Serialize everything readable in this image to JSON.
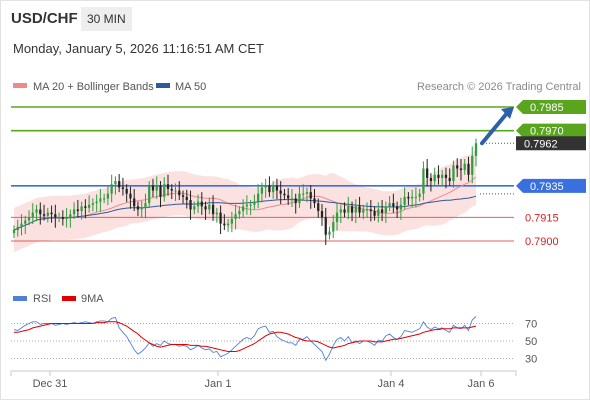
{
  "header": {
    "symbol": "USD/CHF",
    "timeframe": "30 MIN",
    "datetime": "Monday, January 5, 2026 11:16:51 AM CET"
  },
  "legend": {
    "bb_label": "MA 20 + Bollinger Bands",
    "ma50_label": "MA 50",
    "credit": "Research © 2026 Trading Central",
    "colors": {
      "bb": "#f08a8a",
      "ma50": "#2d5a9c"
    }
  },
  "rsi_legend": {
    "rsi_label": "RSI",
    "ma_label": "9MA",
    "colors": {
      "rsi": "#4f7fd9",
      "ma": "#e00000"
    }
  },
  "chart_data": [
    {
      "type": "candlestick",
      "title": "",
      "y_range": [
        0.786,
        0.7995
      ],
      "x_tick_labels": [
        "Dec 31",
        "Jan 1",
        "Jan 4",
        "Jan 6"
      ],
      "levels": [
        {
          "value": 0.7985,
          "label": "0.7985",
          "kind": "resistance",
          "color": "#5aa51e"
        },
        {
          "value": 0.797,
          "label": "0.7970",
          "kind": "resistance",
          "color": "#5aa51e"
        },
        {
          "value": 0.7962,
          "label": "0.7962",
          "kind": "last",
          "color": "#333333"
        },
        {
          "value": 0.7935,
          "label": "0.7935",
          "kind": "pivot",
          "color": "#3a6fe0"
        },
        {
          "value": 0.7915,
          "label": "0.7915",
          "kind": "support",
          "color": "#e06060"
        },
        {
          "value": 0.79,
          "label": "0.7900",
          "kind": "support",
          "color": "#e06060"
        }
      ],
      "arrow": {
        "direction": "up",
        "from": 0.7962,
        "to": 0.7985,
        "color": "#2e5fa8"
      },
      "close": [
        0.7907,
        0.7909,
        0.7911,
        0.7913,
        0.7915,
        0.7918,
        0.792,
        0.7917,
        0.7916,
        0.7918,
        0.7917,
        0.7915,
        0.7915,
        0.7914,
        0.7915,
        0.7917,
        0.792,
        0.7919,
        0.7922,
        0.7921,
        0.7923,
        0.7924,
        0.7925,
        0.7927,
        0.7927,
        0.793,
        0.7936,
        0.7938,
        0.7934,
        0.7933,
        0.793,
        0.7927,
        0.7922,
        0.792,
        0.7921,
        0.7924,
        0.7935,
        0.7932,
        0.7935,
        0.7928,
        0.7936,
        0.7933,
        0.7932,
        0.7932,
        0.7929,
        0.7928,
        0.7926,
        0.792,
        0.7922,
        0.7925,
        0.7922,
        0.792,
        0.7923,
        0.7917,
        0.7918,
        0.7911,
        0.791,
        0.7911,
        0.7914,
        0.7917,
        0.7919,
        0.7922,
        0.7923,
        0.7923,
        0.7925,
        0.793,
        0.7934,
        0.7935,
        0.7931,
        0.7935,
        0.7932,
        0.793,
        0.7929,
        0.7927,
        0.7927,
        0.7924,
        0.793,
        0.793,
        0.7931,
        0.7927,
        0.7924,
        0.7919,
        0.7915,
        0.7904,
        0.7906,
        0.7912,
        0.7918,
        0.792,
        0.7918,
        0.7922,
        0.7918,
        0.7922,
        0.7918,
        0.792,
        0.792,
        0.7919,
        0.7916,
        0.792,
        0.7918,
        0.7922,
        0.7924,
        0.7922,
        0.792,
        0.7923,
        0.7928,
        0.7927,
        0.7928,
        0.7928,
        0.793,
        0.7946,
        0.794,
        0.7938,
        0.7942,
        0.794,
        0.7942,
        0.794,
        0.7938,
        0.7948,
        0.7946,
        0.7945,
        0.7949,
        0.7942,
        0.7954,
        0.7962
      ],
      "rsi": {
        "ylim": [
          20,
          80
        ],
        "ticks": [
          70,
          50,
          30
        ],
        "rsi": [
          63,
          62,
          65,
          68,
          70,
          72,
          72,
          69,
          70,
          70,
          70,
          68,
          69,
          70,
          69,
          70,
          71,
          70,
          71,
          72,
          71,
          70,
          72,
          73,
          73,
          72,
          76,
          77,
          65,
          60,
          55,
          48,
          40,
          35,
          38,
          42,
          48,
          44,
          47,
          45,
          50,
          47,
          46,
          46,
          44,
          45,
          44,
          40,
          42,
          45,
          42,
          40,
          41,
          37,
          38,
          32,
          34,
          36,
          40,
          44,
          48,
          52,
          54,
          52,
          56,
          64,
          66,
          67,
          60,
          61,
          55,
          52,
          50,
          48,
          48,
          45,
          52,
          52,
          55,
          50,
          46,
          42,
          38,
          28,
          35,
          45,
          52,
          54,
          50,
          55,
          48,
          50,
          47,
          50,
          50,
          48,
          45,
          51,
          50,
          56,
          58,
          54,
          52,
          55,
          62,
          61,
          60,
          62,
          64,
          72,
          66,
          63,
          66,
          64,
          65,
          62,
          60,
          68,
          65,
          64,
          68,
          62,
          74,
          78
        ],
        "ma": [
          60,
          60,
          61,
          62,
          63,
          65,
          66,
          67,
          68,
          69,
          70,
          70,
          70,
          70,
          70,
          70,
          70,
          70,
          70,
          70,
          70,
          70,
          71,
          71,
          71,
          72,
          72,
          72,
          71,
          69,
          67,
          64,
          61,
          58,
          54,
          51,
          48,
          46,
          44,
          43,
          44,
          45,
          46,
          46,
          46,
          46,
          46,
          45,
          45,
          45,
          44,
          44,
          43,
          42,
          41,
          40,
          39,
          38,
          38,
          38,
          39,
          41,
          43,
          45,
          47,
          50,
          53,
          56,
          58,
          59,
          60,
          60,
          59,
          58,
          56,
          54,
          53,
          51,
          50,
          50,
          50,
          49,
          47,
          45,
          43,
          42,
          43,
          44,
          45,
          47,
          48,
          49,
          50,
          50,
          50,
          50,
          49,
          49,
          49,
          50,
          51,
          52,
          52,
          53,
          54,
          55,
          56,
          57,
          58,
          60,
          61,
          62,
          63,
          63,
          64,
          64,
          64,
          65,
          65,
          65,
          65,
          65,
          66,
          67
        ]
      }
    }
  ]
}
